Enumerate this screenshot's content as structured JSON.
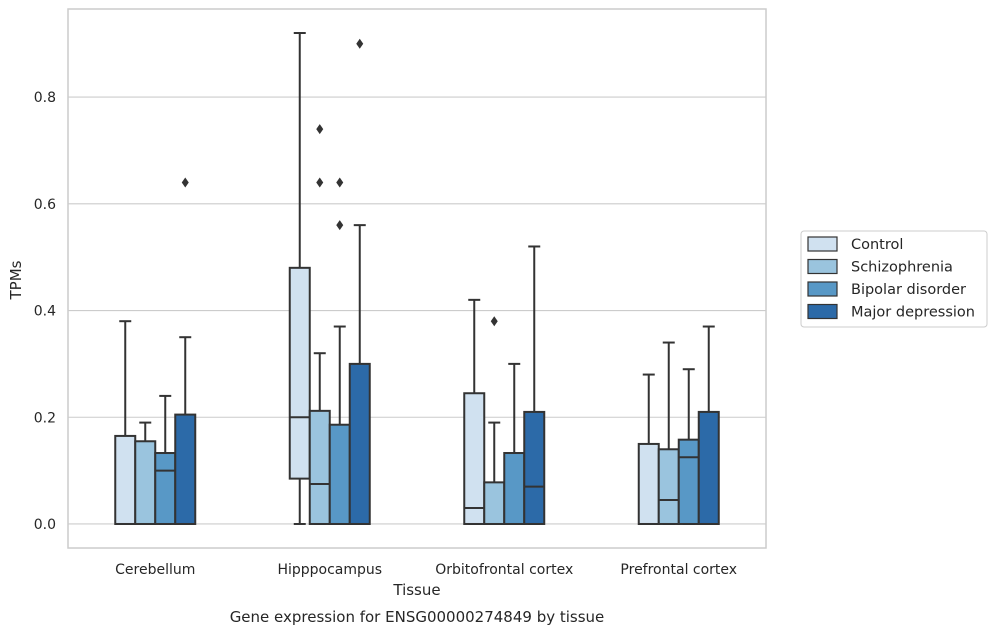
{
  "chart_data": {
    "type": "box",
    "title": "",
    "xlabel": "Tissue",
    "ylabel": "TPMs",
    "caption": "Gene expression for ENSG00000274849 by tissue",
    "categories": [
      "Cerebellum",
      "Hipppocampus",
      "Orbitofrontal cortex",
      "Prefrontal cortex"
    ],
    "ylim": [
      -0.045,
      0.965
    ],
    "yticks": [
      0.0,
      0.2,
      0.4,
      0.6,
      0.8
    ],
    "ytick_labels": [
      "0.0",
      "0.2",
      "0.4",
      "0.6",
      "0.8"
    ],
    "grid": "horizontal",
    "legend_position": "right",
    "series": [
      {
        "name": "Control",
        "color": "#d0e1f0",
        "boxes": [
          {
            "min": 0.0,
            "q1": 0.0,
            "median": 0.0,
            "q3": 0.165,
            "max": 0.38,
            "outliers": []
          },
          {
            "min": 0.0,
            "q1": 0.085,
            "median": 0.2,
            "q3": 0.48,
            "max": 0.92,
            "outliers": []
          },
          {
            "min": 0.0,
            "q1": 0.0,
            "median": 0.03,
            "q3": 0.245,
            "max": 0.42,
            "outliers": []
          },
          {
            "min": 0.0,
            "q1": 0.0,
            "median": 0.0,
            "q3": 0.15,
            "max": 0.28,
            "outliers": []
          }
        ]
      },
      {
        "name": "Schizophrenia",
        "color": "#9ac4de",
        "boxes": [
          {
            "min": 0.0,
            "q1": 0.0,
            "median": 0.0,
            "q3": 0.155,
            "max": 0.19,
            "outliers": []
          },
          {
            "min": 0.0,
            "q1": 0.0,
            "median": 0.075,
            "q3": 0.212,
            "max": 0.32,
            "outliers": [
              0.64,
              0.74
            ]
          },
          {
            "min": 0.0,
            "q1": 0.0,
            "median": 0.0,
            "q3": 0.078,
            "max": 0.19,
            "outliers": [
              0.38
            ]
          },
          {
            "min": 0.0,
            "q1": 0.0,
            "median": 0.045,
            "q3": 0.14,
            "max": 0.34,
            "outliers": []
          }
        ]
      },
      {
        "name": "Bipolar disorder",
        "color": "#5898c6",
        "boxes": [
          {
            "min": 0.0,
            "q1": 0.0,
            "median": 0.1,
            "q3": 0.133,
            "max": 0.24,
            "outliers": []
          },
          {
            "min": 0.0,
            "q1": 0.0,
            "median": 0.0,
            "q3": 0.186,
            "max": 0.37,
            "outliers": [
              0.56,
              0.64
            ]
          },
          {
            "min": 0.0,
            "q1": 0.0,
            "median": 0.0,
            "q3": 0.133,
            "max": 0.3,
            "outliers": []
          },
          {
            "min": 0.0,
            "q1": 0.0,
            "median": 0.125,
            "q3": 0.158,
            "max": 0.29,
            "outliers": []
          }
        ]
      },
      {
        "name": "Major depression",
        "color": "#2c6aa8",
        "boxes": [
          {
            "min": 0.0,
            "q1": 0.0,
            "median": 0.0,
            "q3": 0.205,
            "max": 0.35,
            "outliers": [
              0.64
            ]
          },
          {
            "min": 0.0,
            "q1": 0.0,
            "median": 0.0,
            "q3": 0.3,
            "max": 0.56,
            "outliers": [
              0.9
            ]
          },
          {
            "min": 0.0,
            "q1": 0.0,
            "median": 0.07,
            "q3": 0.21,
            "max": 0.52,
            "outliers": []
          },
          {
            "min": 0.0,
            "q1": 0.0,
            "median": 0.0,
            "q3": 0.21,
            "max": 0.37,
            "outliers": []
          }
        ]
      }
    ]
  },
  "style": {
    "line_color": "#333333",
    "grid_color": "#cccccc",
    "frame_color": "#cccccc"
  }
}
